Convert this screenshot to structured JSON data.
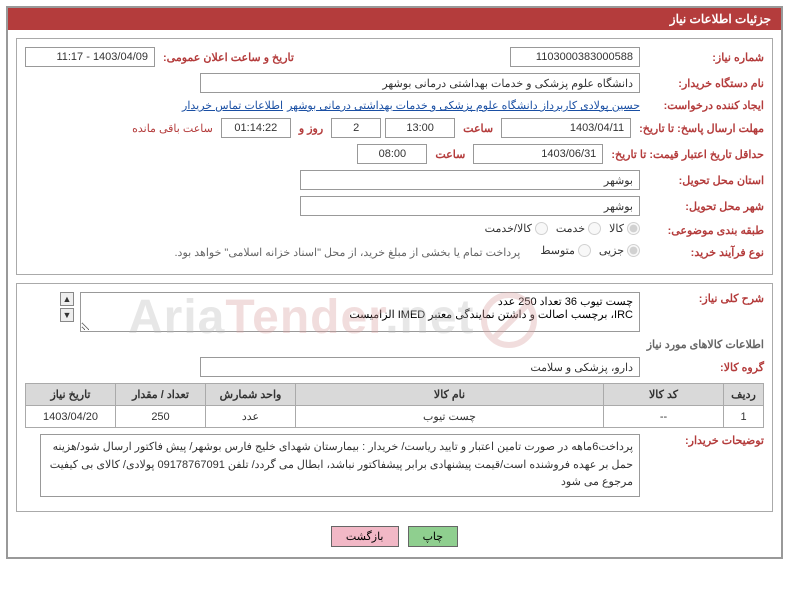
{
  "header": {
    "title": "جزئیات اطلاعات نیاز"
  },
  "labels": {
    "need_no": "شماره نیاز:",
    "announce_dt": "تاریخ و ساعت اعلان عمومی:",
    "buyer_org": "نام دستگاه خریدار:",
    "requester": "ایجاد کننده درخواست:",
    "contact_link": "اطلاعات تماس خریدار",
    "reply_deadline": "مهلت ارسال پاسخ: تا تاریخ:",
    "hour": "ساعت",
    "days_and": "روز و",
    "remaining": "ساعت باقی مانده",
    "price_valid": "حداقل تاریخ اعتبار قیمت: تا تاریخ:",
    "deliv_prov": "استان محل تحویل:",
    "deliv_city": "شهر محل تحویل:",
    "subject_cat": "طبقه بندی موضوعی:",
    "purchase_type": "نوع فرآیند خرید:",
    "pay_note": "پرداخت تمام یا بخشی از مبلغ خرید، از محل \"اسناد خزانه اسلامی\" خواهد بود.",
    "desc": "شرح کلی نیاز:",
    "goods_info": "اطلاعات کالاهای مورد نیاز",
    "goods_group": "گروه کالا:",
    "buyer_notes": "توضیحات خریدار:",
    "btn_print": "چاپ",
    "btn_back": "بازگشت"
  },
  "values": {
    "need_no": "1103000383000588",
    "announce_dt": "1403/04/09 - 11:17",
    "buyer_org": "دانشگاه علوم پزشکی و خدمات بهداشتی درمانی بوشهر",
    "requester": "حسین پولادی کاربرداز دانشگاه علوم پزشکی و خدمات بهداشتی درمانی بوشهر",
    "reply_date": "1403/04/11",
    "reply_time": "13:00",
    "days_left": "2",
    "time_left": "01:14:22",
    "price_valid_date": "1403/06/31",
    "price_valid_time": "08:00",
    "deliv_prov": "بوشهر",
    "deliv_city": "بوشهر",
    "desc": "چست تیوب 36 تعداد 250 عدد\nIRC، برچسب اصالت و داشتن نمایندگی معتبر IMED الزامیست",
    "goods_group": "دارو، پزشکی و سلامت",
    "buyer_notes": "پرداخت6ماهه در صورت تامین اعتبار و تایید ریاست/ خریدار : بیمارستان شهدای خلیج فارس بوشهر/ پیش فاکتور ارسال شود/هزینه حمل بر عهده فروشنده است/قیمت پیشنهادی برابر پیشفاکتور نباشد، ابطال می گردد/ تلفن 09178767091 پولادی/ کالای بی کیفیت مرجوع می شود"
  },
  "radios": {
    "subject": [
      {
        "label": "کالا",
        "checked": true
      },
      {
        "label": "خدمت",
        "checked": false
      },
      {
        "label": "کالا/خدمت",
        "checked": false
      }
    ],
    "purchase": [
      {
        "label": "جزیی",
        "checked": true
      },
      {
        "label": "متوسط",
        "checked": false
      }
    ]
  },
  "table": {
    "columns": [
      "ردیف",
      "کد کالا",
      "نام کالا",
      "واحد شمارش",
      "تعداد / مقدار",
      "تاریخ نیاز"
    ],
    "widths": [
      "40px",
      "120px",
      "auto",
      "90px",
      "90px",
      "90px"
    ],
    "rows": [
      [
        "1",
        "--",
        "چست تیوب",
        "عدد",
        "250",
        "1403/04/20"
      ]
    ]
  },
  "watermark": {
    "text_gray": "Aria",
    "text_red": "Tender",
    "suffix": ".net"
  }
}
